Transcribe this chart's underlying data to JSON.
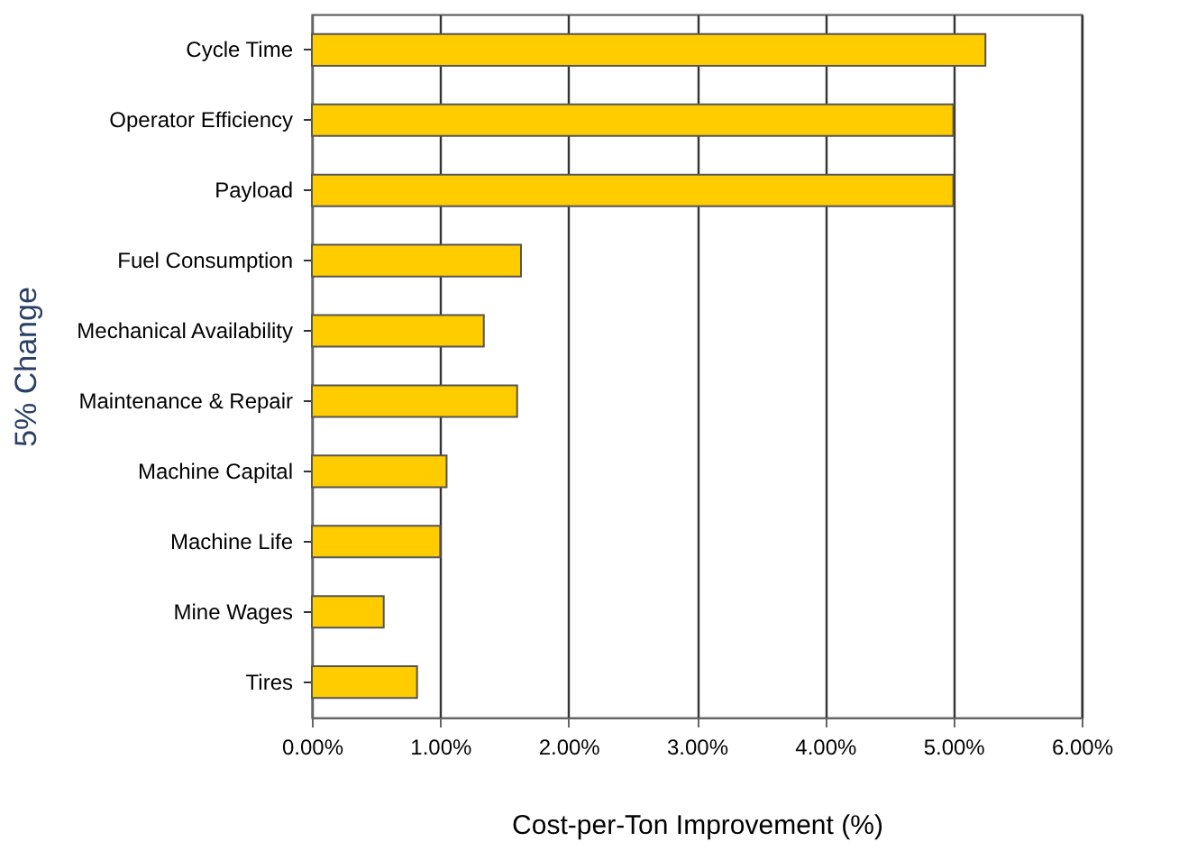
{
  "chart_data": {
    "type": "bar",
    "orientation": "horizontal",
    "xlabel": "Cost-per-Ton Improvement (%)",
    "ylabel": "5% Change",
    "categories": [
      "Cycle Time",
      "Operator Efficiency",
      "Payload",
      "Fuel Consumption",
      "Mechanical Availability",
      "Maintenance & Repair",
      "Machine Capital",
      "Machine Life",
      "Mine Wages",
      "Tires"
    ],
    "values": [
      5.25,
      5.0,
      5.0,
      1.63,
      1.34,
      1.6,
      1.05,
      1.0,
      0.56,
      0.82
    ],
    "color": "#ffcc00",
    "xlim": [
      0,
      6
    ],
    "xticks": [
      {
        "value": 0,
        "label": "0.00%"
      },
      {
        "value": 1,
        "label": "1.00%"
      },
      {
        "value": 2,
        "label": "2.00%"
      },
      {
        "value": 3,
        "label": "3.00%"
      },
      {
        "value": 4,
        "label": "4.00%"
      },
      {
        "value": 5,
        "label": "5.00%"
      },
      {
        "value": 6,
        "label": "6.00%"
      }
    ],
    "grid": "x"
  }
}
